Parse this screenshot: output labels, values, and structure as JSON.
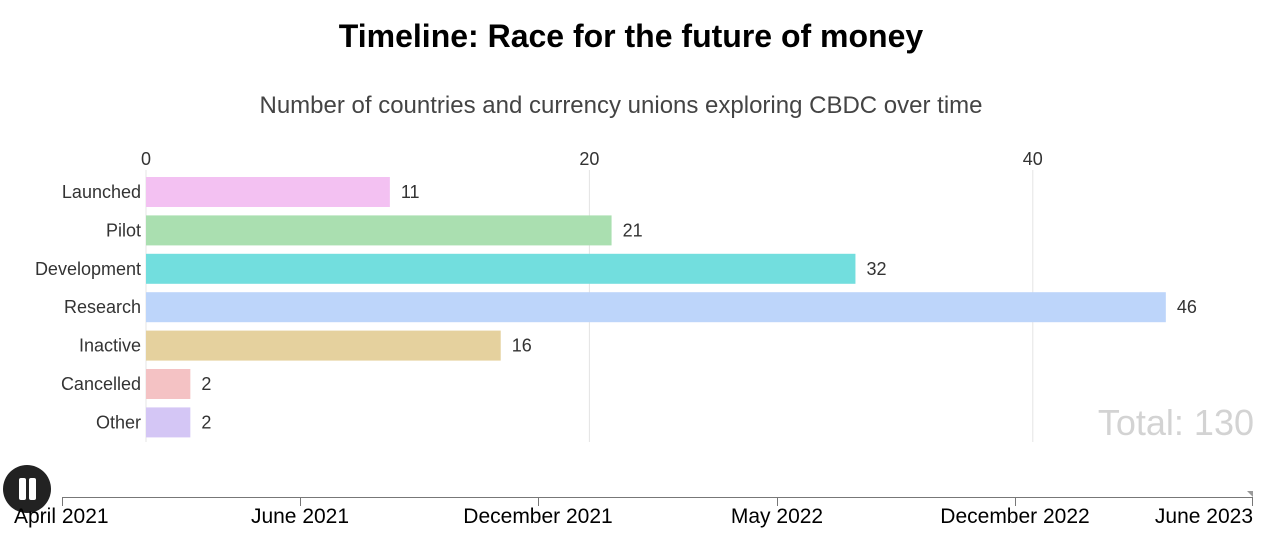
{
  "title": "Timeline: Race for the future of money",
  "subtitle": "Number of countries and currency unions exploring CBDC over time",
  "total": {
    "label": "Total:",
    "value": "130"
  },
  "timeline": {
    "ticks": [
      "April 2021",
      "June 2021",
      "December 2021",
      "May 2022",
      "December 2022",
      "June 2023"
    ],
    "progress": 1.0,
    "play_icon": "pause-icon"
  },
  "chart_data": {
    "type": "bar",
    "orientation": "horizontal",
    "categories": [
      "Launched",
      "Pilot",
      "Development",
      "Research",
      "Inactive",
      "Cancelled",
      "Other"
    ],
    "values": [
      11,
      21,
      32,
      46,
      16,
      2,
      2
    ],
    "colors": [
      "#f3c1f2",
      "#aadfb0",
      "#72dede",
      "#bdd5fa",
      "#e5d19e",
      "#f4c2c4",
      "#d4c6f5"
    ],
    "xlim": [
      0,
      46
    ],
    "x_ticks": [
      0,
      20,
      40
    ],
    "grid": true,
    "xaxis_position": "top"
  }
}
